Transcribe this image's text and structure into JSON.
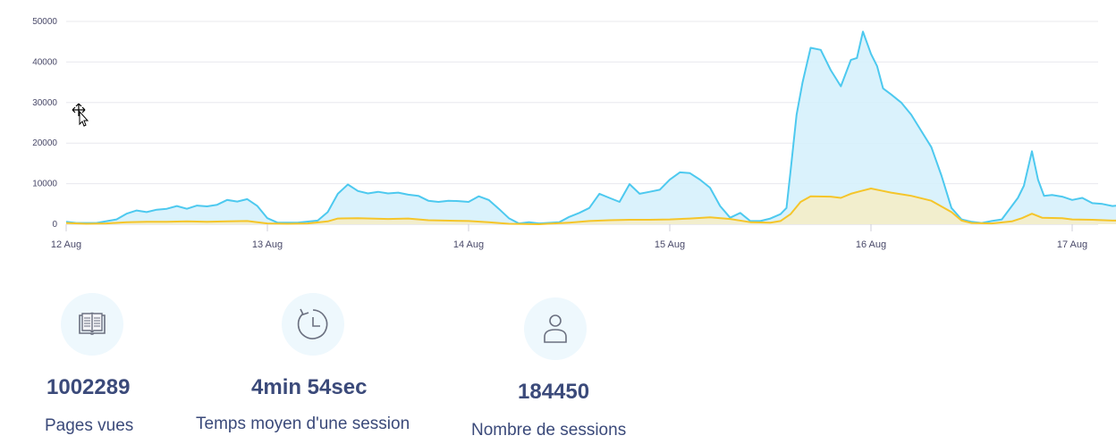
{
  "chart_data": {
    "type": "area",
    "y_ticks": [
      "50000",
      "40000",
      "30000",
      "20000",
      "10000",
      "0"
    ],
    "y_tick_values": [
      50000,
      40000,
      30000,
      20000,
      10000,
      0
    ],
    "ylim": [
      0,
      50000
    ],
    "x_ticks": [
      "12 Aug",
      "13 Aug",
      "14 Aug",
      "15 Aug",
      "16 Aug",
      "17 Aug"
    ],
    "x_tick_days": [
      0,
      1,
      2,
      3,
      4,
      5
    ],
    "grid": true,
    "legend": "none",
    "series": [
      {
        "color": "#4dc9ef",
        "fill": "#d3f0fb",
        "points": [
          [
            0.0,
            600
          ],
          [
            0.05,
            300
          ],
          [
            0.15,
            300
          ],
          [
            0.25,
            1200
          ],
          [
            0.3,
            2600
          ],
          [
            0.35,
            3400
          ],
          [
            0.4,
            3000
          ],
          [
            0.45,
            3600
          ],
          [
            0.5,
            3800
          ],
          [
            0.55,
            4500
          ],
          [
            0.6,
            3800
          ],
          [
            0.65,
            4600
          ],
          [
            0.7,
            4400
          ],
          [
            0.75,
            4800
          ],
          [
            0.8,
            6000
          ],
          [
            0.85,
            5600
          ],
          [
            0.9,
            6200
          ],
          [
            0.95,
            4500
          ],
          [
            1.0,
            1500
          ],
          [
            1.05,
            400
          ],
          [
            1.15,
            400
          ],
          [
            1.25,
            900
          ],
          [
            1.3,
            3000
          ],
          [
            1.35,
            7500
          ],
          [
            1.4,
            9800
          ],
          [
            1.45,
            8200
          ],
          [
            1.5,
            7600
          ],
          [
            1.55,
            8000
          ],
          [
            1.6,
            7600
          ],
          [
            1.65,
            7800
          ],
          [
            1.7,
            7300
          ],
          [
            1.75,
            7000
          ],
          [
            1.8,
            5800
          ],
          [
            1.85,
            5500
          ],
          [
            1.9,
            5800
          ],
          [
            1.95,
            5700
          ],
          [
            2.0,
            5500
          ],
          [
            2.05,
            6900
          ],
          [
            2.1,
            6000
          ],
          [
            2.15,
            3800
          ],
          [
            2.2,
            1500
          ],
          [
            2.25,
            200
          ],
          [
            2.3,
            500
          ],
          [
            2.35,
            200
          ],
          [
            2.45,
            500
          ],
          [
            2.5,
            1800
          ],
          [
            2.55,
            2800
          ],
          [
            2.6,
            4000
          ],
          [
            2.65,
            7500
          ],
          [
            2.7,
            6500
          ],
          [
            2.75,
            5500
          ],
          [
            2.8,
            9900
          ],
          [
            2.85,
            7500
          ],
          [
            2.9,
            8000
          ],
          [
            2.95,
            8500
          ],
          [
            3.0,
            11000
          ],
          [
            3.05,
            12800
          ],
          [
            3.1,
            12600
          ],
          [
            3.15,
            11000
          ],
          [
            3.2,
            9000
          ],
          [
            3.25,
            4500
          ],
          [
            3.3,
            1600
          ],
          [
            3.35,
            2800
          ],
          [
            3.4,
            800
          ],
          [
            3.45,
            800
          ],
          [
            3.5,
            1400
          ],
          [
            3.55,
            2500
          ],
          [
            3.58,
            4000
          ],
          [
            3.6,
            13000
          ],
          [
            3.63,
            27000
          ],
          [
            3.66,
            35000
          ],
          [
            3.7,
            43500
          ],
          [
            3.75,
            43000
          ],
          [
            3.8,
            38000
          ],
          [
            3.85,
            34000
          ],
          [
            3.9,
            40500
          ],
          [
            3.93,
            41000
          ],
          [
            3.96,
            47500
          ],
          [
            4.0,
            42000
          ],
          [
            4.03,
            39000
          ],
          [
            4.06,
            33500
          ],
          [
            4.1,
            32000
          ],
          [
            4.15,
            30000
          ],
          [
            4.2,
            27000
          ],
          [
            4.25,
            23000
          ],
          [
            4.3,
            19000
          ],
          [
            4.35,
            12000
          ],
          [
            4.4,
            4000
          ],
          [
            4.45,
            1200
          ],
          [
            4.5,
            600
          ],
          [
            4.55,
            300
          ],
          [
            4.6,
            800
          ],
          [
            4.65,
            1200
          ],
          [
            4.7,
            4500
          ],
          [
            4.73,
            6500
          ],
          [
            4.76,
            9500
          ],
          [
            4.8,
            18000
          ],
          [
            4.83,
            11000
          ],
          [
            4.86,
            7000
          ],
          [
            4.9,
            7200
          ],
          [
            4.95,
            6800
          ],
          [
            5.0,
            6000
          ],
          [
            5.05,
            6500
          ],
          [
            5.1,
            5200
          ],
          [
            5.15,
            5000
          ],
          [
            5.2,
            4500
          ],
          [
            5.25,
            4700
          ],
          [
            5.3,
            5200
          ],
          [
            5.35,
            4300
          ],
          [
            5.4,
            4800
          ],
          [
            5.45,
            4200
          ],
          [
            5.5,
            3200
          ],
          [
            5.55,
            500
          ],
          [
            5.6,
            0
          ]
        ]
      },
      {
        "color": "#f5c52a",
        "fill": "#f6edc4",
        "points": [
          [
            0.0,
            300
          ],
          [
            0.1,
            100
          ],
          [
            0.2,
            200
          ],
          [
            0.3,
            500
          ],
          [
            0.4,
            600
          ],
          [
            0.5,
            600
          ],
          [
            0.6,
            700
          ],
          [
            0.7,
            600
          ],
          [
            0.8,
            700
          ],
          [
            0.9,
            800
          ],
          [
            1.0,
            200
          ],
          [
            1.1,
            100
          ],
          [
            1.2,
            200
          ],
          [
            1.3,
            700
          ],
          [
            1.35,
            1400
          ],
          [
            1.45,
            1500
          ],
          [
            1.6,
            1300
          ],
          [
            1.7,
            1400
          ],
          [
            1.8,
            1000
          ],
          [
            2.0,
            800
          ],
          [
            2.1,
            500
          ],
          [
            2.2,
            100
          ],
          [
            2.35,
            0
          ],
          [
            2.5,
            400
          ],
          [
            2.6,
            800
          ],
          [
            2.7,
            1000
          ],
          [
            2.8,
            1100
          ],
          [
            2.9,
            1100
          ],
          [
            3.0,
            1200
          ],
          [
            3.1,
            1400
          ],
          [
            3.2,
            1700
          ],
          [
            3.3,
            1300
          ],
          [
            3.4,
            500
          ],
          [
            3.5,
            400
          ],
          [
            3.55,
            800
          ],
          [
            3.6,
            2500
          ],
          [
            3.65,
            5500
          ],
          [
            3.7,
            6900
          ],
          [
            3.8,
            6800
          ],
          [
            3.85,
            6500
          ],
          [
            3.9,
            7500
          ],
          [
            3.95,
            8200
          ],
          [
            4.0,
            8800
          ],
          [
            4.05,
            8300
          ],
          [
            4.1,
            7800
          ],
          [
            4.2,
            7000
          ],
          [
            4.3,
            5800
          ],
          [
            4.4,
            3000
          ],
          [
            4.45,
            900
          ],
          [
            4.5,
            300
          ],
          [
            4.6,
            200
          ],
          [
            4.7,
            700
          ],
          [
            4.75,
            1500
          ],
          [
            4.8,
            2600
          ],
          [
            4.85,
            1600
          ],
          [
            4.95,
            1500
          ],
          [
            5.0,
            1200
          ],
          [
            5.1,
            1100
          ],
          [
            5.2,
            900
          ],
          [
            5.3,
            900
          ],
          [
            5.4,
            700
          ],
          [
            5.5,
            400
          ],
          [
            5.55,
            0
          ],
          [
            5.6,
            0
          ]
        ]
      }
    ]
  },
  "stats": [
    {
      "icon": "book-icon",
      "value": "1002289",
      "label": "Pages vues"
    },
    {
      "icon": "clock-icon",
      "value": "4min 54sec",
      "label": "Temps moyen d'une session"
    },
    {
      "icon": "user-icon",
      "value": "184450",
      "label": "Nombre de sessions"
    }
  ],
  "colors": {
    "accent_text": "#3b4a7a",
    "icon_circle": "#eef8fd",
    "grid": "#e8e8ee"
  }
}
